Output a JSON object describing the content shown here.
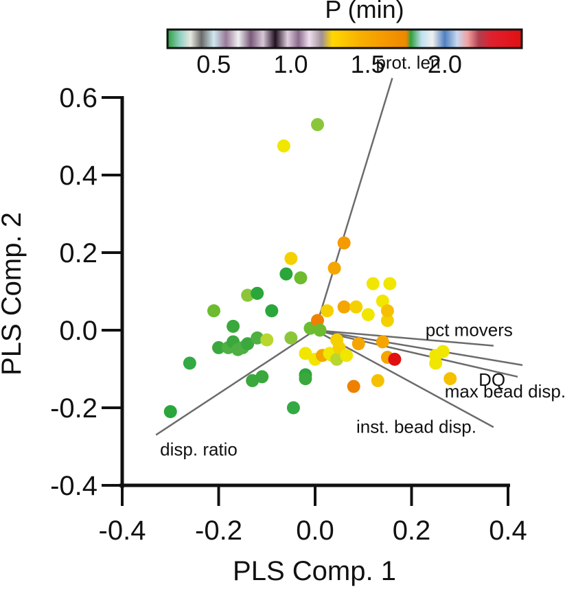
{
  "chart_data": {
    "type": "scatter",
    "title": "",
    "xlabel": "PLS Comp. 1",
    "ylabel": "PLS Comp. 2",
    "xlim": [
      -0.4,
      0.4
    ],
    "ylim": [
      -0.4,
      0.6
    ],
    "xticks": [
      {
        "value": -0.4,
        "label": "-0.4"
      },
      {
        "value": -0.2,
        "label": "-0.2"
      },
      {
        "value": 0.0,
        "label": "0.0"
      },
      {
        "value": 0.2,
        "label": "0.2"
      },
      {
        "value": 0.4,
        "label": "0.4"
      }
    ],
    "yticks": [
      {
        "value": 0.6,
        "label": "0.6"
      },
      {
        "value": 0.4,
        "label": "0.4"
      },
      {
        "value": 0.2,
        "label": "0.2"
      },
      {
        "value": 0.0,
        "label": "0.0"
      },
      {
        "value": -0.2,
        "label": "-0.2"
      },
      {
        "value": -0.4,
        "label": "-0.4"
      }
    ],
    "colorbar": {
      "title": "P  (min)",
      "range": [
        0.2,
        2.5
      ],
      "ticks": [
        {
          "value": 0.5,
          "label": "0.5"
        },
        {
          "value": 1.0,
          "label": "1.0"
        },
        {
          "value": 1.5,
          "label": "1.5"
        },
        {
          "value": 2.0,
          "label": "2.0"
        }
      ],
      "stops": [
        {
          "value": 0.2,
          "color": "#2e9e3e"
        },
        {
          "value": 0.28,
          "color": "#8fcfc0"
        },
        {
          "value": 0.35,
          "color": "#e8e8e0"
        },
        {
          "value": 0.42,
          "color": "#6a6a6a"
        },
        {
          "value": 0.5,
          "color": "#d0e8f0"
        },
        {
          "value": 0.58,
          "color": "#9a7a9a"
        },
        {
          "value": 0.66,
          "color": "#f0f0f0"
        },
        {
          "value": 0.74,
          "color": "#7a5a7a"
        },
        {
          "value": 0.82,
          "color": "#d8c8d8"
        },
        {
          "value": 0.9,
          "color": "#201020"
        },
        {
          "value": 0.98,
          "color": "#e0d0e0"
        },
        {
          "value": 1.05,
          "color": "#8a6a8a"
        },
        {
          "value": 1.12,
          "color": "#f0e0f0"
        },
        {
          "value": 1.2,
          "color": "#a09098"
        },
        {
          "value": 1.27,
          "color": "#ffd800"
        },
        {
          "value": 1.45,
          "color": "#f8b000"
        },
        {
          "value": 1.6,
          "color": "#f59a00"
        },
        {
          "value": 1.75,
          "color": "#ee8800"
        },
        {
          "value": 1.78,
          "color": "#30a040"
        },
        {
          "value": 1.85,
          "color": "#c0e0f0"
        },
        {
          "value": 1.92,
          "color": "#f0f0f0"
        },
        {
          "value": 2.0,
          "color": "#5080c0"
        },
        {
          "value": 2.08,
          "color": "#c8d8f0"
        },
        {
          "value": 2.15,
          "color": "#f0a0a0"
        },
        {
          "value": 2.22,
          "color": "#b04050"
        },
        {
          "value": 2.3,
          "color": "#e02030"
        },
        {
          "value": 2.5,
          "color": "#e01010"
        }
      ]
    },
    "loadings": [
      {
        "label": "prot. len",
        "x": 0.16,
        "y": 0.65,
        "label_position": "above"
      },
      {
        "label": "pct movers",
        "x": 0.37,
        "y": -0.04,
        "label_position": "above"
      },
      {
        "label": "DQ",
        "x": 0.43,
        "y": -0.09,
        "label_position": "below"
      },
      {
        "label": "max bead disp.",
        "x": 0.42,
        "y": -0.12,
        "label_position": "below-left"
      },
      {
        "label": "inst. bead disp.",
        "x": 0.37,
        "y": -0.25,
        "label_position": "left"
      },
      {
        "label": "disp. ratio",
        "x": -0.33,
        "y": -0.27,
        "label_position": "below"
      }
    ],
    "series": [
      {
        "name": "samples",
        "points": [
          {
            "x": -0.3,
            "y": -0.21,
            "color": "#2aa63a"
          },
          {
            "x": -0.26,
            "y": -0.085,
            "color": "#33aa44"
          },
          {
            "x": -0.21,
            "y": 0.05,
            "color": "#6dbb2f"
          },
          {
            "x": -0.2,
            "y": -0.045,
            "color": "#3aa83c"
          },
          {
            "x": -0.18,
            "y": -0.045,
            "color": "#4eb042"
          },
          {
            "x": -0.17,
            "y": -0.03,
            "color": "#3aa83c"
          },
          {
            "x": -0.17,
            "y": 0.01,
            "color": "#3aa83c"
          },
          {
            "x": -0.16,
            "y": -0.05,
            "color": "#4eb042"
          },
          {
            "x": -0.15,
            "y": -0.045,
            "color": "#4eb042"
          },
          {
            "x": -0.14,
            "y": 0.09,
            "color": "#8bc63a"
          },
          {
            "x": -0.14,
            "y": -0.035,
            "color": "#3aa83c"
          },
          {
            "x": -0.13,
            "y": -0.13,
            "color": "#3aa83c"
          },
          {
            "x": -0.12,
            "y": 0.095,
            "color": "#2aa63a"
          },
          {
            "x": -0.12,
            "y": -0.02,
            "color": "#4eb042"
          },
          {
            "x": -0.11,
            "y": -0.12,
            "color": "#3aa83c"
          },
          {
            "x": -0.1,
            "y": -0.025,
            "color": "#b7d72e"
          },
          {
            "x": -0.09,
            "y": 0.05,
            "color": "#2aa63a"
          },
          {
            "x": -0.065,
            "y": 0.475,
            "color": "#f0e600"
          },
          {
            "x": -0.06,
            "y": 0.145,
            "color": "#2aa63a"
          },
          {
            "x": -0.05,
            "y": 0.185,
            "color": "#f5d000"
          },
          {
            "x": -0.05,
            "y": -0.02,
            "color": "#8bc63a"
          },
          {
            "x": -0.045,
            "y": -0.2,
            "color": "#33aa44"
          },
          {
            "x": -0.03,
            "y": 0.135,
            "color": "#6dbb2f"
          },
          {
            "x": -0.02,
            "y": -0.06,
            "color": "#f0e600"
          },
          {
            "x": -0.02,
            "y": -0.115,
            "color": "#2aa63a"
          },
          {
            "x": -0.02,
            "y": -0.125,
            "color": "#3aa83c"
          },
          {
            "x": -0.01,
            "y": 0.005,
            "color": "#6dbb2f"
          },
          {
            "x": 0.0,
            "y": -0.075,
            "color": "#f0e600"
          },
          {
            "x": 0.005,
            "y": 0.53,
            "color": "#8bc63a"
          },
          {
            "x": 0.005,
            "y": 0.025,
            "color": "#f08000"
          },
          {
            "x": 0.01,
            "y": 0.0,
            "color": "#6dbb2f"
          },
          {
            "x": 0.015,
            "y": -0.065,
            "color": "#f5a500"
          },
          {
            "x": 0.025,
            "y": 0.05,
            "color": "#f5d000"
          },
          {
            "x": 0.03,
            "y": -0.06,
            "color": "#f0e600"
          },
          {
            "x": 0.035,
            "y": -0.065,
            "color": "#f0e600"
          },
          {
            "x": 0.04,
            "y": 0.16,
            "color": "#f5a500"
          },
          {
            "x": 0.045,
            "y": -0.025,
            "color": "#f5d000"
          },
          {
            "x": 0.045,
            "y": -0.075,
            "color": "#b7d72e"
          },
          {
            "x": 0.05,
            "y": -0.045,
            "color": "#f5d000"
          },
          {
            "x": 0.06,
            "y": 0.225,
            "color": "#f59a00"
          },
          {
            "x": 0.06,
            "y": 0.06,
            "color": "#f5a500"
          },
          {
            "x": 0.065,
            "y": -0.065,
            "color": "#f0e600"
          },
          {
            "x": 0.08,
            "y": -0.145,
            "color": "#f08000"
          },
          {
            "x": 0.085,
            "y": 0.06,
            "color": "#f5d000"
          },
          {
            "x": 0.09,
            "y": -0.035,
            "color": "#f5a500"
          },
          {
            "x": 0.11,
            "y": 0.04,
            "color": "#f0e600"
          },
          {
            "x": 0.12,
            "y": 0.12,
            "color": "#f0e600"
          },
          {
            "x": 0.13,
            "y": -0.13,
            "color": "#f5c000"
          },
          {
            "x": 0.14,
            "y": 0.075,
            "color": "#f0e600"
          },
          {
            "x": 0.14,
            "y": -0.03,
            "color": "#f5a500"
          },
          {
            "x": 0.15,
            "y": 0.025,
            "color": "#f5d000"
          },
          {
            "x": 0.15,
            "y": 0.05,
            "color": "#f5c000"
          },
          {
            "x": 0.15,
            "y": -0.07,
            "color": "#f5a500"
          },
          {
            "x": 0.155,
            "y": 0.12,
            "color": "#f0e600"
          },
          {
            "x": 0.165,
            "y": -0.075,
            "color": "#e01010"
          },
          {
            "x": 0.25,
            "y": -0.065,
            "color": "#f0e600"
          },
          {
            "x": 0.25,
            "y": -0.085,
            "color": "#f0e600"
          },
          {
            "x": 0.265,
            "y": -0.055,
            "color": "#f0e600"
          },
          {
            "x": 0.28,
            "y": -0.125,
            "color": "#f5c000"
          }
        ]
      }
    ]
  }
}
